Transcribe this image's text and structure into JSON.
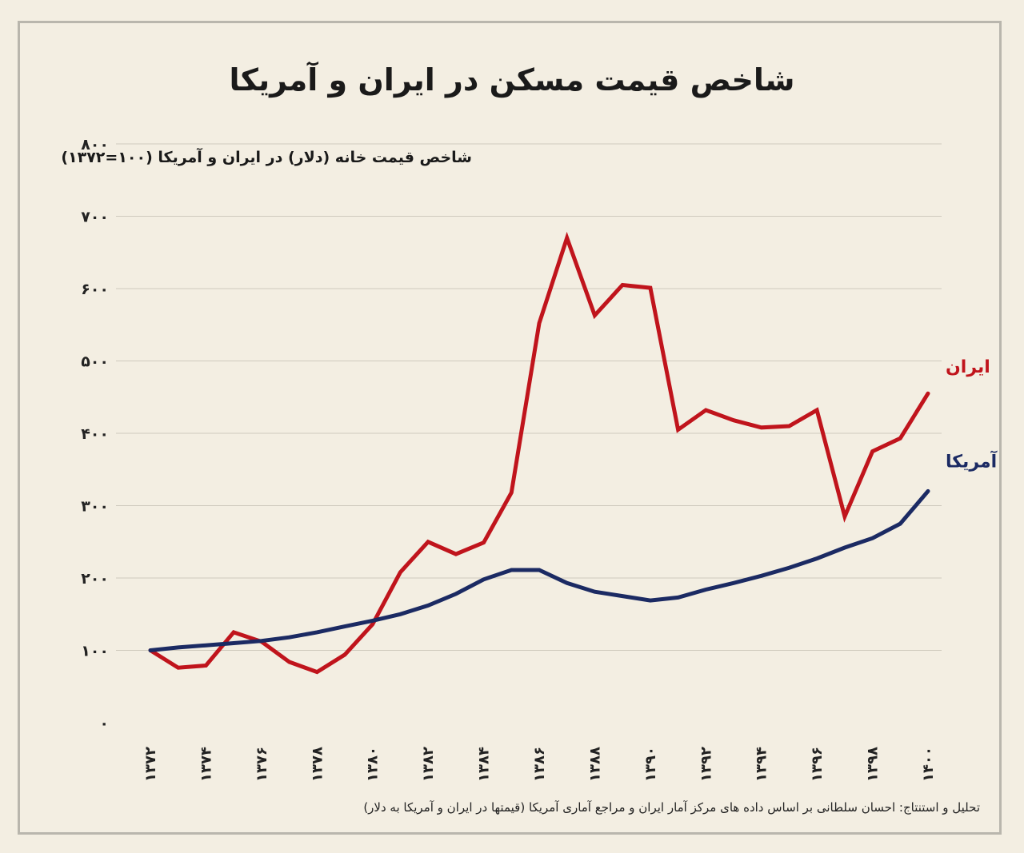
{
  "title": "شاخص قیمت مسکن در ایران و آمریکا",
  "source": "تحلیل و استنتاج: احسان سلطانی بر اساس داده های مرکز آمار ایران و مراجع آماری آمریکا (قیمتها در ایران و آمریکا به دلار)",
  "chart_data": {
    "type": "line",
    "title": "شاخص قیمت مسکن در ایران و آمریکا",
    "subtitle": "شاخص قیمت خانه (دلار) در ایران و آمریکا (۱۰۰=۱۳۷۲)",
    "xlabel": "",
    "ylabel": "",
    "ylim": [
      0,
      800
    ],
    "yticks": [
      0,
      100,
      200,
      300,
      400,
      500,
      600,
      700,
      800
    ],
    "ytick_labels": [
      "۰",
      "۱۰۰",
      "۲۰۰",
      "۳۰۰",
      "۴۰۰",
      "۵۰۰",
      "۶۰۰",
      "۷۰۰",
      "۸۰۰"
    ],
    "x": [
      1372,
      1373,
      1374,
      1375,
      1376,
      1377,
      1378,
      1379,
      1380,
      1381,
      1382,
      1383,
      1384,
      1385,
      1386,
      1387,
      1388,
      1389,
      1390,
      1391,
      1392,
      1393,
      1394,
      1395,
      1396,
      1397,
      1398,
      1399,
      1400
    ],
    "xticks": [
      1372,
      1374,
      1376,
      1378,
      1380,
      1382,
      1384,
      1386,
      1388,
      1390,
      1392,
      1394,
      1396,
      1398,
      1400
    ],
    "xtick_labels": [
      "۱۳۷۲",
      "۱۳۷۴",
      "۱۳۷۶",
      "۱۳۷۸",
      "۱۳۸۰",
      "۱۳۸۲",
      "۱۳۸۴",
      "۱۳۸۶",
      "۱۳۸۸",
      "۱۳۹۰",
      "۱۳۹۲",
      "۱۳۹۴",
      "۱۳۹۶",
      "۱۳۹۸",
      "۱۴۰۰"
    ],
    "grid": true,
    "series": [
      {
        "name": "ایران",
        "color": "#c0141c",
        "values": [
          100,
          76,
          79,
          125,
          112,
          84,
          70,
          94,
          136,
          208,
          250,
          233,
          249,
          318,
          552,
          670,
          563,
          605,
          601,
          405,
          432,
          418,
          408,
          410,
          432,
          285,
          375,
          393,
          455
        ]
      },
      {
        "name": "آمریکا",
        "color": "#1b2a63",
        "values": [
          100,
          104,
          107,
          110,
          113,
          118,
          125,
          133,
          141,
          150,
          162,
          178,
          198,
          211,
          211,
          193,
          181,
          175,
          169,
          173,
          184,
          193,
          203,
          214,
          227,
          242,
          255,
          275,
          320
        ]
      }
    ]
  }
}
